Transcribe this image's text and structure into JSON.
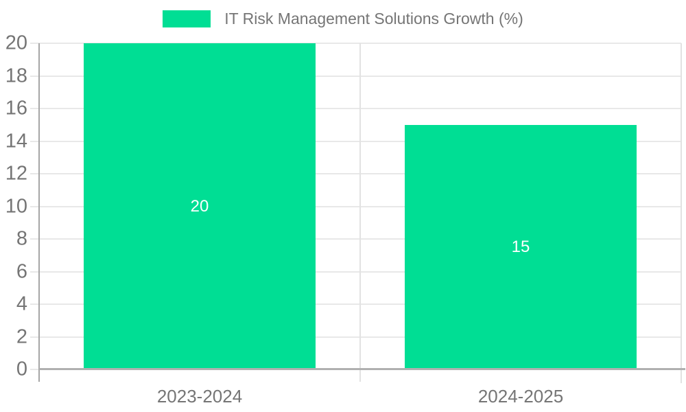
{
  "chart_data": {
    "type": "bar",
    "title": "IT Risk Management Solutions Growth (%)",
    "categories": [
      "2023-2024",
      "2024-2025"
    ],
    "values": [
      20,
      15
    ],
    "xlabel": "",
    "ylabel": "",
    "ylim": [
      0,
      20
    ],
    "ytick_step": 2,
    "yticks": [
      0,
      2,
      4,
      6,
      8,
      10,
      12,
      14,
      16,
      18,
      20
    ],
    "grid": "horizontal",
    "legend_position": "top-center",
    "bar_labels": [
      "20",
      "15"
    ],
    "colors": {
      "bar": "#00DE94",
      "axis_text": "#757575",
      "gridline": "#e8e8e8",
      "y_axis_line": "#a6a6a6",
      "x_axis_line": "#b0b0b0",
      "divider": "#e2e2e2",
      "value_label": "#ffffff",
      "background": "#ffffff"
    }
  }
}
